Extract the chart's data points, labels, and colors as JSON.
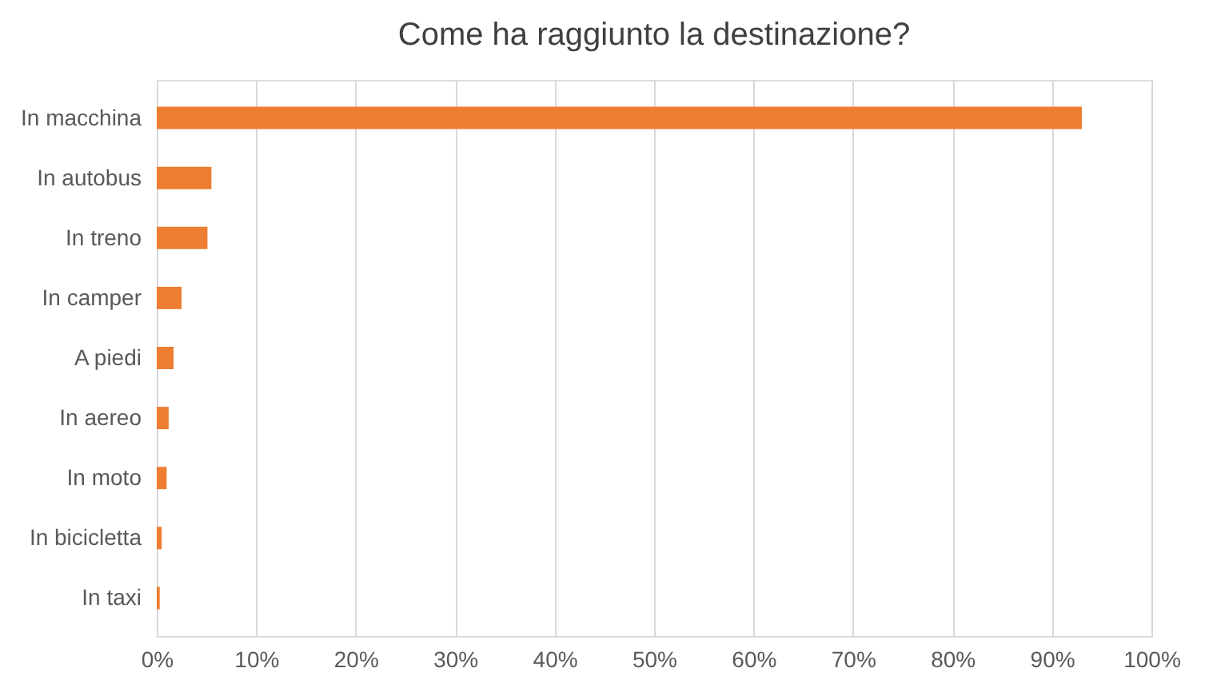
{
  "chart_data": {
    "type": "bar",
    "orientation": "horizontal",
    "title": "Come ha raggiunto la destinazione?",
    "categories": [
      "In macchina",
      "In autobus",
      "In treno",
      "In camper",
      "A piedi",
      "In aereo",
      "In moto",
      "In bicicletta",
      "In taxi"
    ],
    "values": [
      93.0,
      5.5,
      5.1,
      2.5,
      1.7,
      1.2,
      1.0,
      0.5,
      0.3
    ],
    "color": "#ed7d31",
    "xlim": [
      0,
      100
    ],
    "xticks": [
      {
        "value": 0,
        "label": "0%"
      },
      {
        "value": 10,
        "label": "10%"
      },
      {
        "value": 20,
        "label": "20%"
      },
      {
        "value": 30,
        "label": "30%"
      },
      {
        "value": 40,
        "label": "40%"
      },
      {
        "value": 50,
        "label": "50%"
      },
      {
        "value": 60,
        "label": "60%"
      },
      {
        "value": 70,
        "label": "70%"
      },
      {
        "value": 80,
        "label": "80%"
      },
      {
        "value": 90,
        "label": "90%"
      },
      {
        "value": 100,
        "label": "100%"
      }
    ],
    "grid": "x"
  }
}
